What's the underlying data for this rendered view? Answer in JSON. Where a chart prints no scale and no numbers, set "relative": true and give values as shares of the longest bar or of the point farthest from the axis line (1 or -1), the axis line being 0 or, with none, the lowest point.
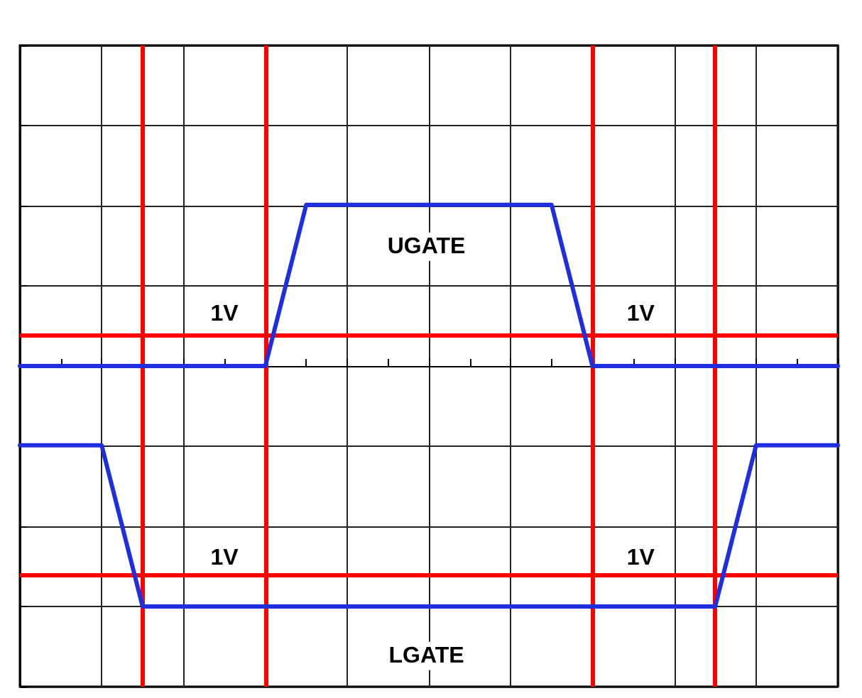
{
  "chart_data": {
    "type": "line",
    "relative": true,
    "grid": true,
    "marker": "none",
    "line_style": "solid",
    "categories": [
      null,
      null,
      null,
      null,
      null,
      null,
      null,
      null,
      null,
      null,
      null,
      null,
      null,
      null,
      null,
      null,
      null,
      null,
      null,
      null,
      null
    ],
    "series": [
      {
        "color": "#1f2fe0",
        "values": [
          0,
          0,
          0,
          0,
          0,
          0,
          0,
          0.67,
          0.67,
          0.67,
          0.67,
          0.67,
          0.67,
          0.67,
          0,
          0,
          0,
          0,
          0,
          0,
          0
        ]
      },
      {
        "color": "#1f2fe0",
        "values": [
          -0.33,
          -0.33,
          -0.33,
          -1,
          -1,
          -1,
          -1,
          -1,
          -1,
          -1,
          -1,
          -1,
          -1,
          -1,
          -1,
          -1,
          -1,
          -1,
          -0.33,
          -0.33,
          -0.33
        ]
      }
    ],
    "ref_lines": [
      {
        "axis": "y",
        "value": 0.13,
        "color": "#ff0000"
      },
      {
        "axis": "y",
        "value": -0.87,
        "color": "#ff0000"
      }
    ],
    "annotations": [
      "UGATE",
      "LGATE",
      "1V",
      "1V",
      "1V",
      "1V"
    ]
  }
}
